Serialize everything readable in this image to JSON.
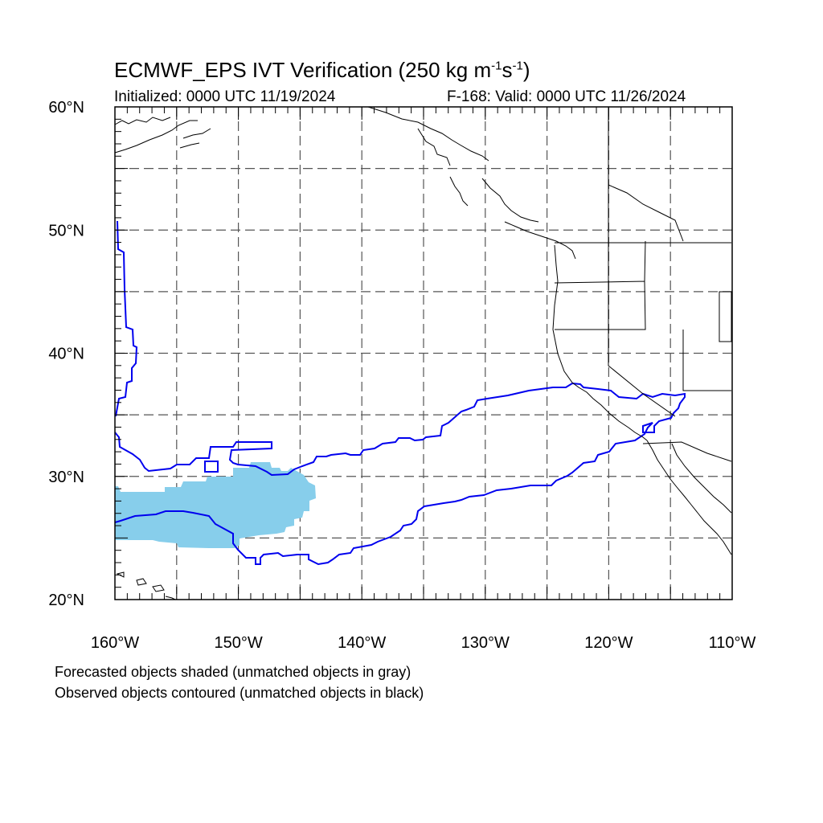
{
  "title": {
    "main": "ECMWF_EPS IVT Verification (250 kg m",
    "sup1": "-1",
    "mid": "s",
    "sup2": "-1",
    "end": ")"
  },
  "initialized": "Initialized: 0000 UTC 11/19/2024",
  "valid": "F-168: Valid: 0000 UTC 11/26/2024",
  "axes": {
    "lat_labels": [
      "60°N",
      "50°N",
      "40°N",
      "30°N",
      "20°N"
    ],
    "lon_labels": [
      "160°W",
      "150°W",
      "140°W",
      "130°W",
      "120°W",
      "110°W"
    ],
    "lat_range": [
      20,
      60
    ],
    "lon_range": [
      -160,
      -110
    ],
    "grid_interval_deg": 5,
    "grid_style": "dashed"
  },
  "colors": {
    "forecast_fill": "#87ceeb",
    "observed_contour": "#0000ee",
    "coastline": "#000000",
    "grid": "#555555"
  },
  "notes": [
    "Forecasted objects shaded (unmatched objects in gray)",
    "Observed objects contoured (unmatched objects in black)"
  ]
}
